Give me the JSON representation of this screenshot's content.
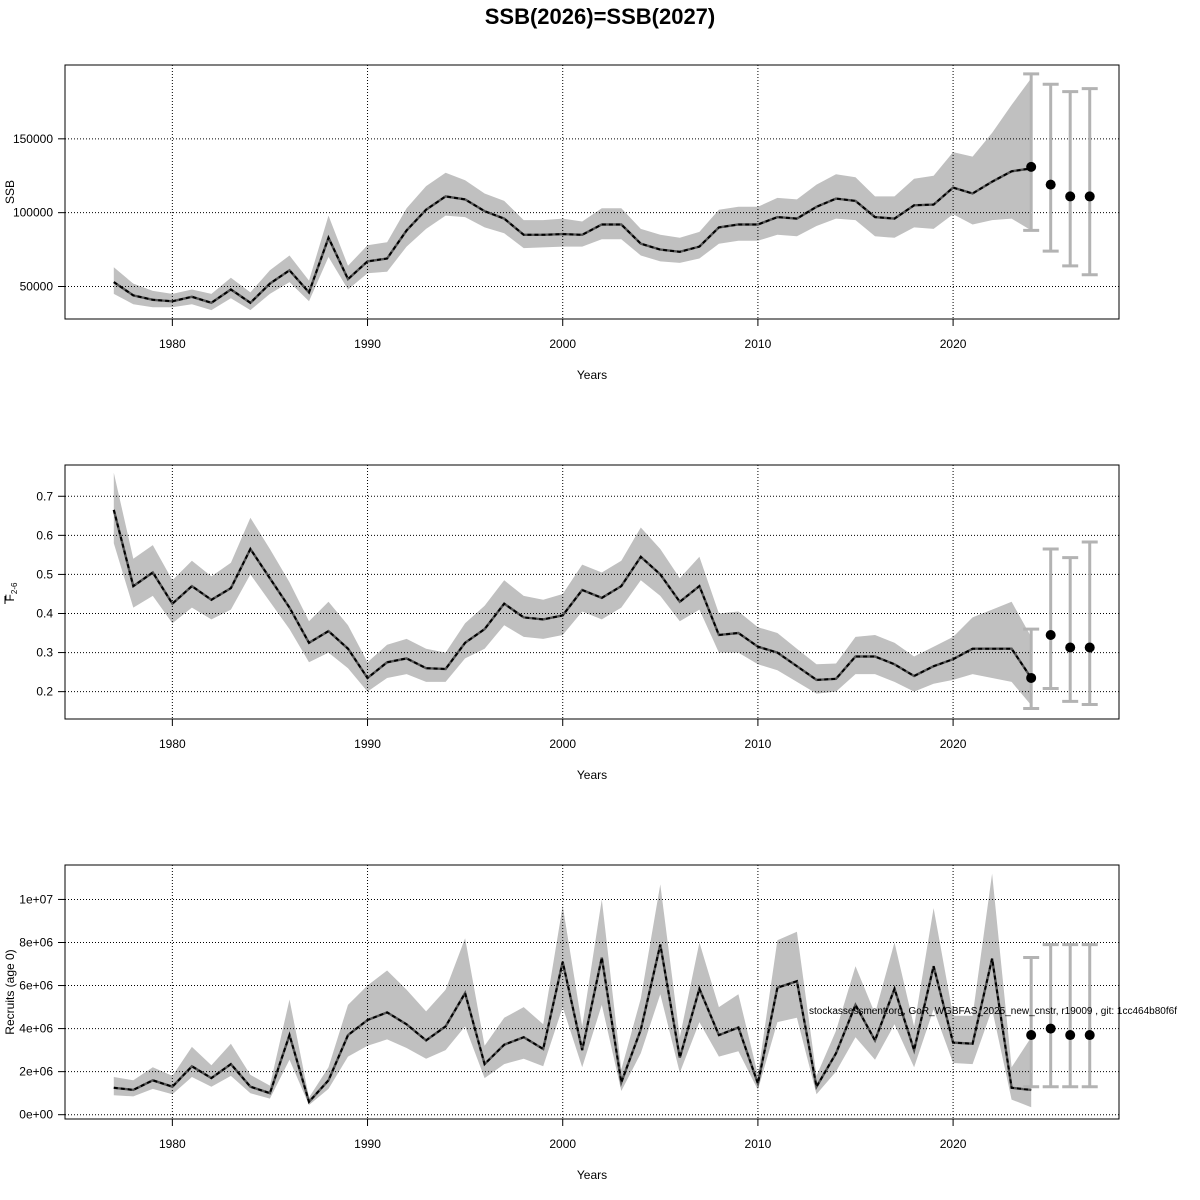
{
  "figure": {
    "title": "SSB(2026)=SSB(2027)",
    "annotation": "stockassessment.org, GoR_WGBFAS_2025_new_cnstr, r19009 , git: 1cc464b80f6f"
  },
  "chart_data": [
    {
      "type": "line",
      "id": "ssb",
      "xlabel": "Years",
      "ylabel": "SSB",
      "xlim": [
        1974.5,
        2028.5
      ],
      "ylim": [
        28000,
        200000
      ],
      "xticks": [
        1980,
        1990,
        2000,
        2010,
        2020
      ],
      "yticks": [
        50000,
        100000,
        150000
      ],
      "ytick_labels": [
        "50000",
        "100000",
        "150000"
      ],
      "grid": true,
      "series": [
        {
          "role": "estimate",
          "x": [
            1977,
            1978,
            1979,
            1980,
            1981,
            1982,
            1983,
            1984,
            1985,
            1986,
            1987,
            1988,
            1989,
            1990,
            1991,
            1992,
            1993,
            1994,
            1995,
            1996,
            1997,
            1998,
            1999,
            2000,
            2001,
            2002,
            2003,
            2004,
            2005,
            2006,
            2007,
            2008,
            2009,
            2010,
            2011,
            2012,
            2013,
            2014,
            2015,
            2016,
            2017,
            2018,
            2019,
            2020,
            2021,
            2022,
            2023,
            2024
          ],
          "y": [
            53000,
            44000,
            41000,
            40000,
            43000,
            39000,
            48000,
            39000,
            52000,
            61000,
            46000,
            83000,
            55000,
            67000,
            69000,
            88000,
            102000,
            111000,
            109000,
            101000,
            96000,
            85000,
            85000,
            85500,
            85000,
            92000,
            92000,
            79000,
            75000,
            73500,
            77000,
            90000,
            92000,
            92000,
            97000,
            96000,
            104000,
            109500,
            108000,
            97000,
            96000,
            105000,
            105500,
            117000,
            113000,
            121000,
            128000,
            130000
          ],
          "lower": [
            45000,
            38000,
            36000,
            36000,
            38000,
            34000,
            42000,
            34000,
            45000,
            53000,
            40000,
            70000,
            48000,
            59000,
            60000,
            77000,
            89000,
            98000,
            97000,
            90000,
            86000,
            76000,
            76500,
            77000,
            77000,
            82000,
            82000,
            71000,
            67000,
            66000,
            69000,
            79000,
            81000,
            81000,
            85000,
            84000,
            91000,
            96000,
            95000,
            84000,
            83000,
            90000,
            89000,
            99000,
            92000,
            95000,
            96000,
            88000
          ],
          "upper": [
            63000,
            52000,
            47000,
            45000,
            48000,
            45000,
            56000,
            46000,
            61000,
            71000,
            54000,
            98000,
            64000,
            78000,
            80000,
            103000,
            118000,
            127000,
            122000,
            113000,
            108000,
            95000,
            95000,
            96000,
            94000,
            103000,
            103000,
            89000,
            85000,
            83000,
            87000,
            102000,
            104000,
            104000,
            110000,
            109000,
            119000,
            126000,
            124000,
            111000,
            111000,
            123000,
            125000,
            141000,
            138000,
            154000,
            173000,
            191000
          ]
        },
        {
          "role": "forecast",
          "x": [
            2024,
            2025,
            2026,
            2027
          ],
          "y": [
            131000,
            119000,
            111000,
            111000
          ],
          "lower": [
            88000,
            74000,
            64000,
            58000
          ],
          "upper": [
            194000,
            187000,
            182000,
            184000
          ]
        }
      ]
    },
    {
      "type": "line",
      "id": "fbar",
      "xlabel": "Years",
      "ylabel": "F",
      "ylabel_sub": "2-6",
      "xlim": [
        1974.5,
        2028.5
      ],
      "ylim": [
        0.13,
        0.78
      ],
      "xticks": [
        1980,
        1990,
        2000,
        2010,
        2020
      ],
      "yticks": [
        0.2,
        0.3,
        0.4,
        0.5,
        0.6,
        0.7
      ],
      "ytick_labels": [
        "0.2",
        "0.3",
        "0.4",
        "0.5",
        "0.6",
        "0.7"
      ],
      "grid": true,
      "series": [
        {
          "role": "estimate",
          "x": [
            1977,
            1978,
            1979,
            1980,
            1981,
            1982,
            1983,
            1984,
            1985,
            1986,
            1987,
            1988,
            1989,
            1990,
            1991,
            1992,
            1993,
            1994,
            1995,
            1996,
            1997,
            1998,
            1999,
            2000,
            2001,
            2002,
            2003,
            2004,
            2005,
            2006,
            2007,
            2008,
            2009,
            2010,
            2011,
            2012,
            2013,
            2014,
            2015,
            2016,
            2017,
            2018,
            2019,
            2020,
            2021,
            2022,
            2023,
            2024
          ],
          "y": [
            0.665,
            0.47,
            0.505,
            0.425,
            0.47,
            0.435,
            0.465,
            0.565,
            0.49,
            0.415,
            0.325,
            0.355,
            0.31,
            0.235,
            0.275,
            0.285,
            0.26,
            0.258,
            0.325,
            0.36,
            0.425,
            0.39,
            0.385,
            0.395,
            0.46,
            0.44,
            0.47,
            0.545,
            0.5,
            0.43,
            0.47,
            0.345,
            0.35,
            0.315,
            0.3,
            0.265,
            0.23,
            0.233,
            0.29,
            0.29,
            0.27,
            0.24,
            0.265,
            0.283,
            0.31,
            0.31,
            0.31,
            0.235
          ],
          "lower": [
            0.58,
            0.415,
            0.445,
            0.375,
            0.415,
            0.385,
            0.41,
            0.5,
            0.43,
            0.36,
            0.275,
            0.3,
            0.26,
            0.2,
            0.235,
            0.245,
            0.225,
            0.225,
            0.285,
            0.31,
            0.37,
            0.34,
            0.335,
            0.345,
            0.405,
            0.385,
            0.415,
            0.485,
            0.445,
            0.38,
            0.41,
            0.3,
            0.3,
            0.27,
            0.255,
            0.225,
            0.195,
            0.2,
            0.245,
            0.245,
            0.225,
            0.2,
            0.22,
            0.23,
            0.245,
            0.235,
            0.225,
            0.165
          ],
          "upper": [
            0.76,
            0.54,
            0.575,
            0.485,
            0.535,
            0.495,
            0.53,
            0.645,
            0.565,
            0.48,
            0.38,
            0.43,
            0.37,
            0.275,
            0.32,
            0.335,
            0.31,
            0.3,
            0.375,
            0.42,
            0.485,
            0.445,
            0.435,
            0.45,
            0.525,
            0.505,
            0.535,
            0.62,
            0.565,
            0.49,
            0.545,
            0.4,
            0.405,
            0.365,
            0.35,
            0.31,
            0.27,
            0.272,
            0.34,
            0.345,
            0.325,
            0.29,
            0.315,
            0.34,
            0.39,
            0.41,
            0.43,
            0.34
          ]
        },
        {
          "role": "forecast",
          "x": [
            2024,
            2025,
            2026,
            2027
          ],
          "y": [
            0.235,
            0.345,
            0.313,
            0.313
          ],
          "lower": [
            0.157,
            0.208,
            0.175,
            0.167
          ],
          "upper": [
            0.36,
            0.565,
            0.543,
            0.583
          ]
        }
      ]
    },
    {
      "type": "line",
      "id": "recruits",
      "xlabel": "Years",
      "ylabel": "Recruits (age 0)",
      "xlim": [
        1974.5,
        2028.5
      ],
      "ylim": [
        -200000,
        11600000
      ],
      "xticks": [
        1980,
        1990,
        2000,
        2010,
        2020
      ],
      "yticks": [
        0,
        2000000,
        4000000,
        6000000,
        8000000,
        10000000
      ],
      "ytick_labels": [
        "0e+00",
        "2e+06",
        "4e+06",
        "6e+06",
        "8e+06",
        "1e+07"
      ],
      "grid": true,
      "series": [
        {
          "role": "estimate",
          "x": [
            1977,
            1978,
            1979,
            1980,
            1981,
            1982,
            1983,
            1984,
            1985,
            1986,
            1987,
            1988,
            1989,
            1990,
            1991,
            1992,
            1993,
            1994,
            1995,
            1996,
            1997,
            1998,
            1999,
            2000,
            2001,
            2002,
            2003,
            2004,
            2005,
            2006,
            2007,
            2008,
            2009,
            2010,
            2011,
            2012,
            2013,
            2014,
            2015,
            2016,
            2017,
            2018,
            2019,
            2020,
            2021,
            2022,
            2023,
            2024
          ],
          "y": [
            1250000,
            1150000,
            1600000,
            1300000,
            2250000,
            1700000,
            2350000,
            1300000,
            1000000,
            3700000,
            600000,
            1600000,
            3700000,
            4400000,
            4750000,
            4200000,
            3450000,
            4100000,
            5650000,
            2350000,
            3250000,
            3600000,
            3050000,
            7100000,
            3000000,
            7300000,
            1500000,
            3950000,
            7900000,
            2650000,
            5850000,
            3700000,
            4050000,
            1450000,
            5900000,
            6200000,
            1300000,
            2850000,
            5100000,
            3450000,
            5850000,
            3000000,
            6900000,
            3350000,
            3300000,
            7250000,
            1250000,
            1150000
          ],
          "lower": [
            900000,
            850000,
            1200000,
            950000,
            1750000,
            1300000,
            1800000,
            1000000,
            750000,
            2550000,
            450000,
            1200000,
            2700000,
            3200000,
            3500000,
            3100000,
            2600000,
            3000000,
            4100000,
            1700000,
            2350000,
            2600000,
            2250000,
            5000000,
            2200000,
            5100000,
            1100000,
            2850000,
            5600000,
            1950000,
            4300000,
            2700000,
            2950000,
            1150000,
            4300000,
            4500000,
            950000,
            2000000,
            3600000,
            2550000,
            4200000,
            2200000,
            4900000,
            2400000,
            2350000,
            4900000,
            700000,
            350000
          ],
          "upper": [
            1750000,
            1600000,
            2200000,
            1800000,
            3150000,
            2300000,
            3300000,
            1850000,
            1350000,
            5350000,
            800000,
            2200000,
            5100000,
            6000000,
            6700000,
            5800000,
            4800000,
            5800000,
            8200000,
            3200000,
            4500000,
            5000000,
            4200000,
            9700000,
            4100000,
            10000000,
            2100000,
            5400000,
            10700000,
            3600000,
            8000000,
            5000000,
            5600000,
            1850000,
            8100000,
            8500000,
            1800000,
            3900000,
            6900000,
            4700000,
            8000000,
            4100000,
            9600000,
            4600000,
            4600000,
            11200000,
            2200000,
            3600000
          ]
        },
        {
          "role": "forecast",
          "x": [
            2024,
            2025,
            2026,
            2027
          ],
          "y": [
            3700000,
            4000000,
            3700000,
            3700000
          ],
          "lower": [
            1300000,
            1300000,
            1300000,
            1300000
          ],
          "upper": [
            7300000,
            7900000,
            7900000,
            7900000
          ]
        }
      ]
    }
  ]
}
